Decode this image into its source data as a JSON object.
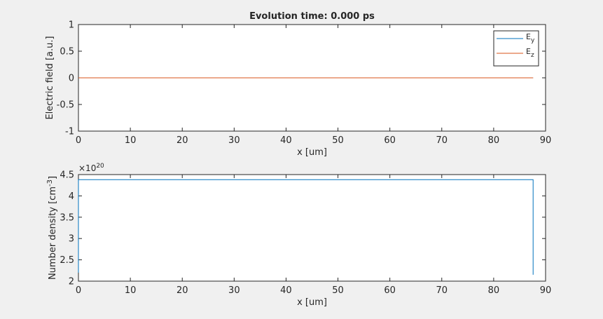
{
  "figure": {
    "title": "Evolution time: 0.000 ps"
  },
  "chart_data": [
    {
      "type": "line",
      "title": "Evolution time: 0.000 ps",
      "xlabel": "x [um]",
      "ylabel": "Electric field [a.u.]",
      "xlim": [
        0,
        90
      ],
      "ylim": [
        -1,
        1
      ],
      "xticks": [
        0,
        10,
        20,
        30,
        40,
        50,
        60,
        70,
        80,
        90
      ],
      "yticks": [
        -1,
        -0.5,
        0,
        0.5,
        1
      ],
      "ytick_labels": [
        "-1",
        "-0.5",
        "0",
        "0.5",
        "1"
      ],
      "legend_position": "top-right",
      "grid": false,
      "series": [
        {
          "name": "E",
          "subscript": "y",
          "color": "#0072BD",
          "x": [
            0,
            87.6
          ],
          "y": [
            0,
            0
          ]
        },
        {
          "name": "E",
          "subscript": "z",
          "color": "#D95319",
          "x": [
            0,
            87.6
          ],
          "y": [
            0,
            0
          ]
        }
      ]
    },
    {
      "type": "line",
      "title": "",
      "xlabel": "x [um]",
      "ylabel": "Number density [cm",
      "ylabel_superscript": "-3",
      "ylabel_suffix": "]",
      "exponent_label": "×10",
      "exponent_power": "20",
      "xlim": [
        0,
        90
      ],
      "ylim": [
        2,
        4.5
      ],
      "xticks": [
        0,
        10,
        20,
        30,
        40,
        50,
        60,
        70,
        80,
        90
      ],
      "yticks": [
        2,
        2.5,
        3,
        3.5,
        4,
        4.5
      ],
      "ytick_labels": [
        "2",
        "2.5",
        "3",
        "3.5",
        "4",
        "4.5"
      ],
      "grid": false,
      "series": [
        {
          "color": "#0072BD",
          "x": [
            0,
            0,
            87.6,
            87.6
          ],
          "y": [
            2.2,
            4.38,
            4.38,
            2.15
          ]
        }
      ]
    }
  ]
}
